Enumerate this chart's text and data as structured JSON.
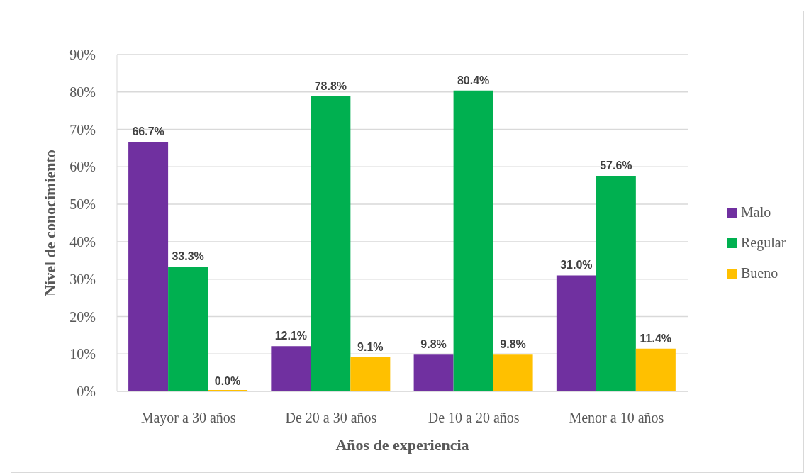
{
  "chart_data": {
    "type": "bar",
    "xlabel": "Años de experiencia",
    "ylabel": "Nivel de conocimiento",
    "categories": [
      "Mayor a 30 años",
      "De 20 a 30 años",
      "De 10 a 20 años",
      "Menor a 10 años"
    ],
    "series": [
      {
        "name": "Malo",
        "color": "#7030a0",
        "values": [
          66.7,
          12.1,
          9.8,
          31.0
        ],
        "value_labels": [
          "66.7%",
          "12.1%",
          "9.8%",
          "31.0%"
        ]
      },
      {
        "name": "Regular",
        "color": "#00b050",
        "values": [
          33.3,
          78.8,
          80.4,
          57.6
        ],
        "value_labels": [
          "33.3%",
          "78.8%",
          "80.4%",
          "57.6%"
        ]
      },
      {
        "name": "Bueno",
        "color": "#ffc000",
        "values": [
          0.0,
          9.1,
          9.8,
          11.4
        ],
        "value_labels": [
          "0.0%",
          "9.1%",
          "9.8%",
          "11.4%"
        ]
      }
    ],
    "ylim": [
      0,
      90
    ],
    "yticks": [
      {
        "value": 0,
        "label": "0%"
      },
      {
        "value": 10,
        "label": "10%"
      },
      {
        "value": 20,
        "label": "20%"
      },
      {
        "value": 30,
        "label": "30%"
      },
      {
        "value": 40,
        "label": "40%"
      },
      {
        "value": 50,
        "label": "50%"
      },
      {
        "value": 60,
        "label": "60%"
      },
      {
        "value": 70,
        "label": "70%"
      },
      {
        "value": 80,
        "label": "80%"
      },
      {
        "value": 90,
        "label": "90%"
      }
    ],
    "grid": "y",
    "legend": "right"
  }
}
